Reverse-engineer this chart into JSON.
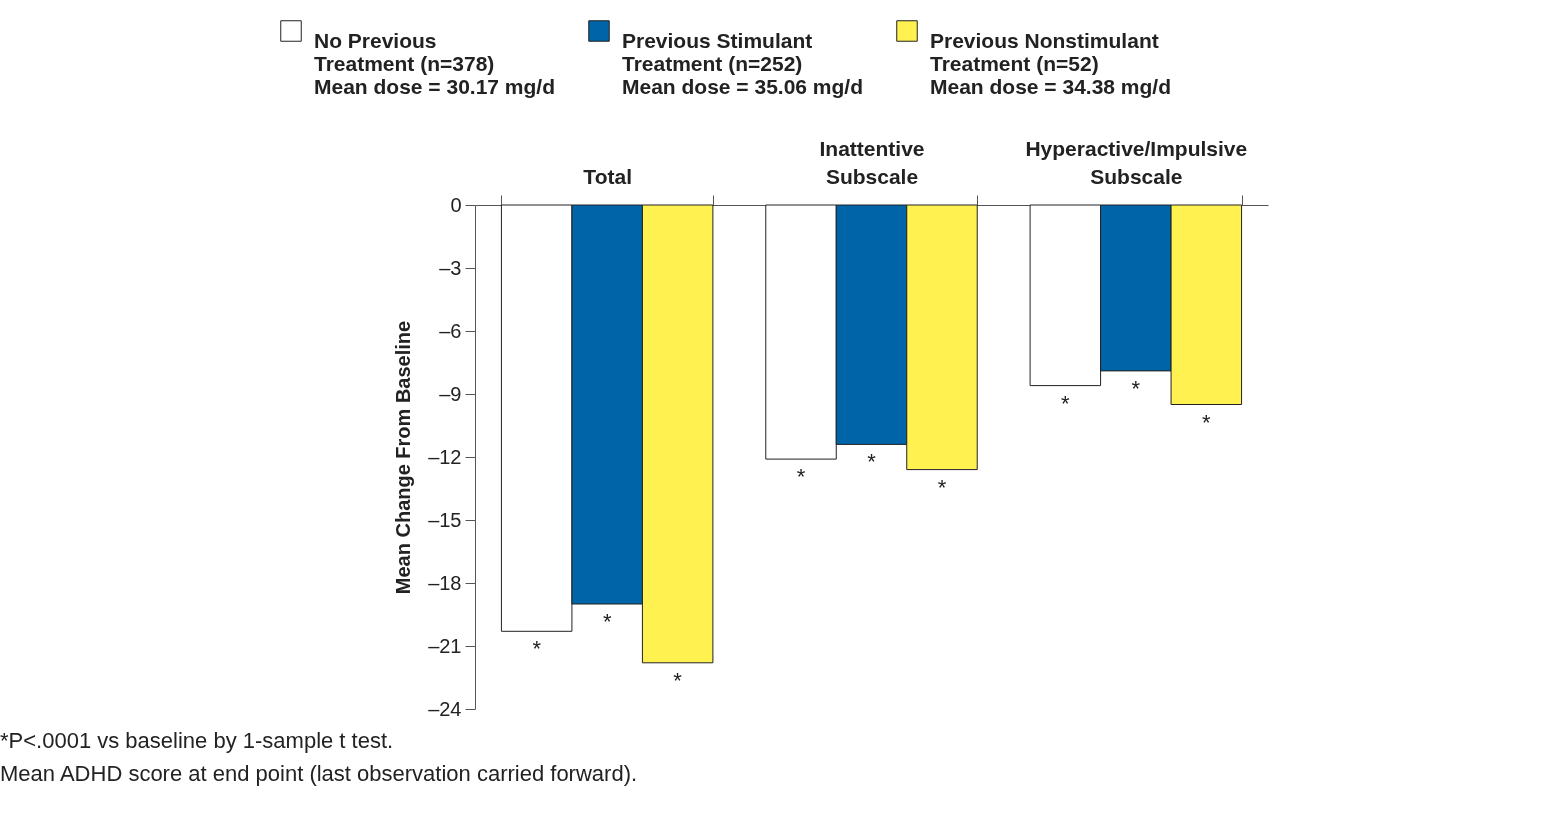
{
  "chart_data": {
    "type": "bar",
    "ylabel": "Mean Change From Baseline",
    "categories": [
      "Total",
      "Inattentive\nSubscale",
      "Hyperactive/Impulsive\nSubscale"
    ],
    "series": [
      {
        "name": "No Previous\nTreatment (n=378)\nMean dose = 30.17 mg/d",
        "color": "#ffffff",
        "values": [
          -20.3,
          -12.1,
          -8.6
        ],
        "value_labels": [
          "*",
          "*",
          "*"
        ]
      },
      {
        "name": "Previous Stimulant\nTreatment (n=252)\nMean dose = 35.06 mg/d",
        "color": "#0065a8",
        "values": [
          -19.0,
          -11.4,
          -7.9
        ],
        "value_labels": [
          "*",
          "*",
          "*"
        ]
      },
      {
        "name": "Previous Nonstimulant\nTreatment (n=52)\nMean dose = 34.38 mg/d",
        "color": "#fff150",
        "values": [
          -21.8,
          -12.6,
          -9.5
        ],
        "value_labels": [
          "*",
          "*",
          "*"
        ]
      }
    ],
    "ylim": [
      -24,
      0
    ],
    "yticks": [
      0,
      {
        "value": -3,
        "label": "–3"
      },
      {
        "value": -6,
        "label": "–6"
      },
      {
        "value": -9,
        "label": "–9"
      },
      {
        "value": -12,
        "label": "–12"
      },
      {
        "value": -15,
        "label": "–15"
      },
      {
        "value": -18,
        "label": "–18"
      },
      {
        "value": -21,
        "label": "–21"
      },
      {
        "value": -24,
        "label": "–24"
      }
    ],
    "grid": false,
    "legend": "top",
    "annotations": [
      "*P<.0001 vs baseline by 1-sample t test.",
      "Mean ADHD score at end point (last observation carried forward)."
    ]
  }
}
